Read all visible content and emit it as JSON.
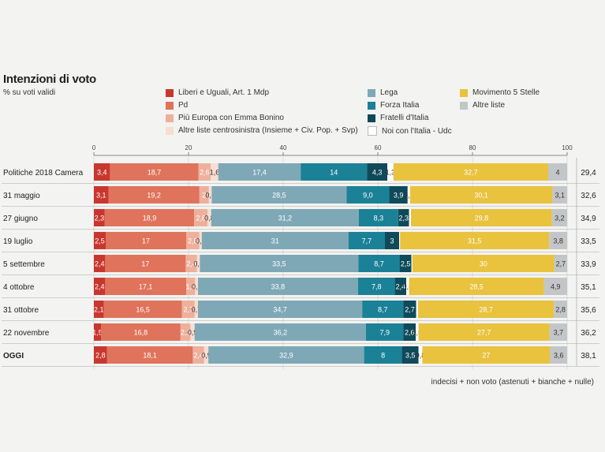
{
  "title": "Intenzioni di voto",
  "subtitle": "% su voti validi",
  "footer_note": "indecisi + non voto (astenuti + bianche + nulle)",
  "chart_data": {
    "type": "bar",
    "orientation": "horizontal",
    "stacked": true,
    "xlim": [
      0,
      100
    ],
    "x_ticks": [
      "0",
      "20",
      "40",
      "60",
      "80",
      "100"
    ],
    "grid": true,
    "legend_placement": "top",
    "categories": [
      "Politiche 2018 Camera",
      "31 maggio",
      "27 giugno",
      "19 luglio",
      "5 settembre",
      "4 ottobre",
      "31 ottobre",
      "22 novembre",
      "OGGI"
    ],
    "series": [
      {
        "name": "Liberi e Uguali, Art. 1 Mdp",
        "color": "#c8372f",
        "values": [
          3.4,
          3.1,
          2.3,
          2.5,
          2.4,
          2.4,
          2.1,
          1.5,
          2.8
        ],
        "labels": [
          "3,4",
          "3,1",
          "2,3",
          "2,5",
          "2,4",
          "2,4",
          "2,1",
          "1,5",
          "2,8"
        ]
      },
      {
        "name": "Pd",
        "color": "#e0735b",
        "values": [
          18.7,
          19.2,
          18.9,
          17,
          17,
          17.1,
          16.5,
          16.8,
          18.1
        ],
        "labels": [
          "18,7",
          "19,2",
          "18,9",
          "17",
          "17",
          "17,1",
          "16,5",
          "16,8",
          "18,1"
        ]
      },
      {
        "name": "Più Europa con Emma Bonino",
        "color": "#eeb09c",
        "values": [
          2.6,
          2,
          2.8,
          2.8,
          2.4,
          1.9,
          2.7,
          2.1,
          2.4
        ],
        "labels": [
          "2,6",
          "2",
          "2,8",
          "2,8",
          "2,4",
          "1,9",
          "2,7",
          "2,1",
          "2,4"
        ]
      },
      {
        "name": "Altre liste centrosinistra (Insieme + Civ. Pop. + Svp)",
        "color": "#f7ddd2",
        "values": [
          1.6,
          0.6,
          0.8,
          0.5,
          0.6,
          0.6,
          0.7,
          0.9,
          0.9
        ],
        "labels": [
          "1,6",
          "0,6",
          "0,8",
          "0,5",
          "0,6",
          "0,6",
          "0,7",
          "0,9",
          "0,9"
        ]
      },
      {
        "name": "Lega",
        "color": "#7fa8b7",
        "values": [
          17.4,
          28.5,
          31.2,
          31,
          33.5,
          33.8,
          34.7,
          36.2,
          32.9
        ],
        "labels": [
          "17,4",
          "28,5",
          "31,2",
          "31",
          "33,5",
          "33,8",
          "34,7",
          "36,2",
          "32,9"
        ]
      },
      {
        "name": "Forza Italia",
        "color": "#1b8197",
        "values": [
          14,
          9,
          8.3,
          7.7,
          8.7,
          7.8,
          8.7,
          7.9,
          8
        ],
        "labels": [
          "14",
          "9,0",
          "8,3",
          "7,7",
          "8,7",
          "7,8",
          "8,7",
          "7,9",
          "8"
        ]
      },
      {
        "name": "Fratelli d'Italia",
        "color": "#0f4a5a",
        "values": [
          4.3,
          3.9,
          2.3,
          3,
          2.5,
          2.4,
          2.7,
          2.6,
          3.5
        ],
        "labels": [
          "4,3",
          "3,9",
          "2,3",
          "3",
          "2,5",
          "2,4",
          "2,7",
          "2,6",
          "3,5"
        ]
      },
      {
        "name": "Noi con l'Italia - Udc",
        "color": "#ffffff",
        "values": [
          1.3,
          0.5,
          0.4,
          0.2,
          0.2,
          0.6,
          0.4,
          0.6,
          0.8
        ],
        "labels": [
          "1,3",
          "0,5",
          "0,4",
          "0,2",
          "0,2",
          "0,6",
          "0,4",
          "0,6",
          "0,8"
        ]
      },
      {
        "name": "Movimento 5 Stelle",
        "color": "#e9c23e",
        "values": [
          32.7,
          30.1,
          29.8,
          31.5,
          30,
          28.5,
          28.7,
          27.7,
          27
        ],
        "labels": [
          "32,7",
          "30,1",
          "29,8",
          "31,5",
          "30",
          "28,5",
          "28,7",
          "27,7",
          "27"
        ]
      },
      {
        "name": "Altre liste",
        "color": "#c3c6c8",
        "values": [
          4,
          3.1,
          3.2,
          3.8,
          2.7,
          4.9,
          2.8,
          3.7,
          3.6
        ],
        "labels": [
          "4",
          "3,1",
          "3,2",
          "3,8",
          "2,7",
          "4,9",
          "2,8",
          "3,7",
          "3,6"
        ]
      }
    ],
    "side_values": [
      "29,4",
      "32,6",
      "34,9",
      "33,5",
      "33,9",
      "35,1",
      "35,6",
      "36,2",
      "38,1"
    ]
  }
}
